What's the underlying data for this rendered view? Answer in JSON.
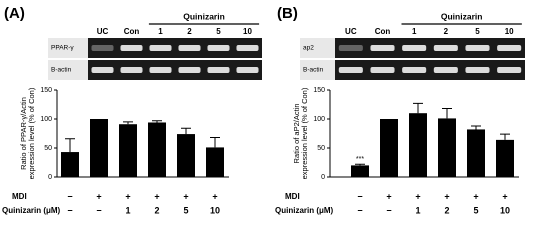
{
  "chart_data": [
    {
      "type": "bar",
      "panel": "(A)",
      "gel": {
        "header": "Quinizarin",
        "lanes": [
          "UC",
          "Con",
          "1",
          "2",
          "5",
          "10"
        ],
        "rows": [
          "PPAR-γ",
          "Β-actin"
        ]
      },
      "ylabel": [
        "Ratio of PPAR-γ/Actin",
        "expression level (% of Con)"
      ],
      "values": [
        43,
        100,
        91,
        94,
        74,
        51
      ],
      "errors": [
        23,
        0,
        4,
        3,
        10,
        17
      ],
      "color": "#000000",
      "ylim": [
        0,
        150
      ],
      "yticks": [
        0,
        50,
        100,
        150
      ],
      "conditions": [
        {
          "name": "MDI",
          "labels": [
            "−",
            "+",
            "+",
            "+",
            "+",
            "+"
          ]
        },
        {
          "name": "Quinizarin (μM)",
          "labels": [
            "−",
            "−",
            "1",
            "2",
            "5",
            "10"
          ]
        }
      ]
    },
    {
      "type": "bar",
      "panel": "(B)",
      "gel": {
        "header": "Quinizarin",
        "lanes": [
          "UC",
          "Con",
          "1",
          "2",
          "5",
          "10"
        ],
        "rows": [
          "ap2",
          "Β-actin"
        ]
      },
      "ylabel": [
        "Ratio of aP2/Actin",
        "expression level (% of Con)"
      ],
      "values": [
        20,
        100,
        110,
        101,
        82,
        64
      ],
      "errors": [
        2,
        0,
        17,
        17,
        6,
        10
      ],
      "value_annotations": [
        "***",
        null,
        null,
        null,
        null,
        null
      ],
      "color": "#000000",
      "ylim": [
        0,
        150
      ],
      "yticks": [
        0,
        50,
        100,
        150
      ],
      "conditions": [
        {
          "name": "MDI",
          "labels": [
            "−",
            "+",
            "+",
            "+",
            "+",
            "+"
          ]
        },
        {
          "name": "Quinizarin (μM)",
          "labels": [
            "−",
            "−",
            "1",
            "2",
            "5",
            "10"
          ]
        }
      ]
    }
  ]
}
